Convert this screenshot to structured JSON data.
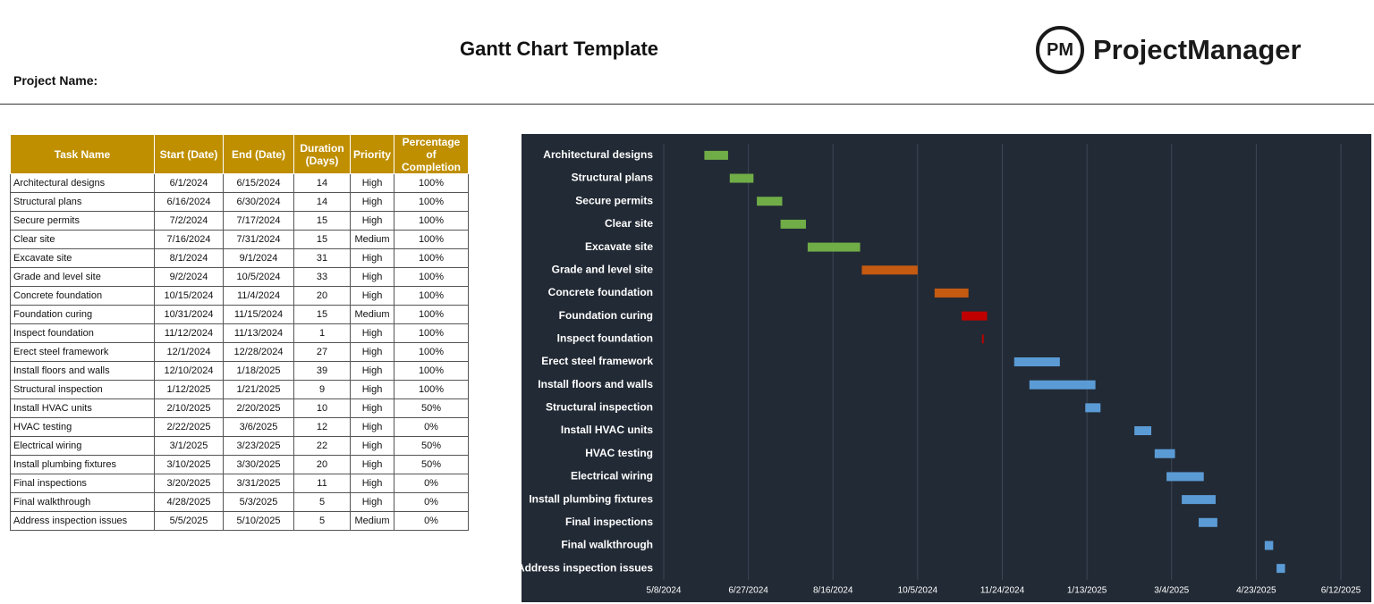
{
  "header": {
    "title": "Gantt Chart Template",
    "project_label": "Project Name:",
    "logo_mark": "PM",
    "logo_text": "ProjectManager"
  },
  "table": {
    "columns": [
      "Task Name",
      "Start (Date)",
      "End (Date)",
      "Duration (Days)",
      "Priority",
      "Percentage of Completion"
    ],
    "rows": [
      [
        "Architectural designs",
        "6/1/2024",
        "6/15/2024",
        14,
        "High",
        "100%"
      ],
      [
        "Structural plans",
        "6/16/2024",
        "6/30/2024",
        14,
        "High",
        "100%"
      ],
      [
        "Secure permits",
        "7/2/2024",
        "7/17/2024",
        15,
        "High",
        "100%"
      ],
      [
        "Clear site",
        "7/16/2024",
        "7/31/2024",
        15,
        "Medium",
        "100%"
      ],
      [
        "Excavate site",
        "8/1/2024",
        "9/1/2024",
        31,
        "High",
        "100%"
      ],
      [
        "Grade and level site",
        "9/2/2024",
        "10/5/2024",
        33,
        "High",
        "100%"
      ],
      [
        "Concrete foundation",
        "10/15/2024",
        "11/4/2024",
        20,
        "High",
        "100%"
      ],
      [
        "Foundation curing",
        "10/31/2024",
        "11/15/2024",
        15,
        "Medium",
        "100%"
      ],
      [
        "Inspect foundation",
        "11/12/2024",
        "11/13/2024",
        1,
        "High",
        "100%"
      ],
      [
        "Erect steel framework",
        "12/1/2024",
        "12/28/2024",
        27,
        "High",
        "100%"
      ],
      [
        "Install floors and walls",
        "12/10/2024",
        "1/18/2025",
        39,
        "High",
        "100%"
      ],
      [
        "Structural inspection",
        "1/12/2025",
        "1/21/2025",
        9,
        "High",
        "100%"
      ],
      [
        "Install HVAC units",
        "2/10/2025",
        "2/20/2025",
        10,
        "High",
        "50%"
      ],
      [
        "HVAC testing",
        "2/22/2025",
        "3/6/2025",
        12,
        "High",
        "0%"
      ],
      [
        "Electrical wiring",
        "3/1/2025",
        "3/23/2025",
        22,
        "High",
        "50%"
      ],
      [
        "Install plumbing fixtures",
        "3/10/2025",
        "3/30/2025",
        20,
        "High",
        "50%"
      ],
      [
        "Final inspections",
        "3/20/2025",
        "3/31/2025",
        11,
        "High",
        "0%"
      ],
      [
        "Final walkthrough",
        "4/28/2025",
        "5/3/2025",
        5,
        "High",
        "0%"
      ],
      [
        "Address inspection issues",
        "5/5/2025",
        "5/10/2025",
        5,
        "Medium",
        "0%"
      ]
    ]
  },
  "chart_data": {
    "type": "gantt",
    "categories": [
      "Architectural designs",
      "Structural plans",
      "Secure permits",
      "Clear site",
      "Excavate site",
      "Grade and level site",
      "Concrete foundation",
      "Foundation curing",
      "Inspect foundation",
      "Erect steel framework",
      "Install floors and walls",
      "Structural inspection",
      "Install HVAC units",
      "HVAC testing",
      "Electrical wiring",
      "Install plumbing fixtures",
      "Final inspections",
      "Final walkthrough",
      "Address inspection issues"
    ],
    "start": [
      45444,
      45459,
      45475,
      45489,
      45505,
      45537,
      45580,
      45596,
      45608,
      45627,
      45636,
      45669,
      45698,
      45710,
      45717,
      45726,
      45736,
      45775,
      45782
    ],
    "values": [
      14,
      14,
      15,
      15,
      31,
      33,
      20,
      15,
      1,
      27,
      39,
      9,
      10,
      12,
      22,
      20,
      11,
      5,
      5
    ],
    "colors": [
      "#70ad47",
      "#70ad47",
      "#70ad47",
      "#70ad47",
      "#70ad47",
      "#c55a11",
      "#c55a11",
      "#c00000",
      "#c00000",
      "#5b9bd5",
      "#5b9bd5",
      "#5b9bd5",
      "#5b9bd5",
      "#5b9bd5",
      "#5b9bd5",
      "#5b9bd5",
      "#5b9bd5",
      "#5b9bd5",
      "#5b9bd5"
    ],
    "xlim": [
      45420,
      45820
    ],
    "xticks": [
      {
        "value": 45420,
        "label": "5/8/2024"
      },
      {
        "value": 45470,
        "label": "6/27/2024"
      },
      {
        "value": 45520,
        "label": "8/16/2024"
      },
      {
        "value": 45570,
        "label": "10/5/2024"
      },
      {
        "value": 45620,
        "label": "11/24/2024"
      },
      {
        "value": 45670,
        "label": "1/13/2025"
      },
      {
        "value": 45720,
        "label": "3/4/2025"
      },
      {
        "value": 45770,
        "label": "4/23/2025"
      },
      {
        "value": 45820,
        "label": "6/12/2025"
      }
    ],
    "grid": true
  }
}
